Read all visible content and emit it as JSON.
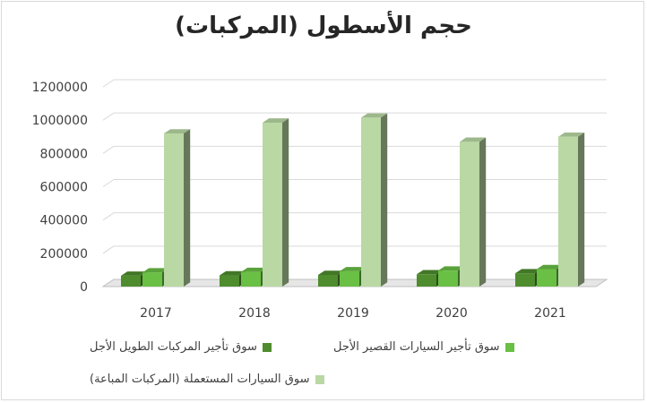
{
  "chart_data": {
    "type": "bar",
    "title": "حجم الأسطول (المركبات)",
    "categories": [
      "2017",
      "2018",
      "2019",
      "2020",
      "2021"
    ],
    "series": [
      {
        "name": "سوق تأجير المركبات الطويل الأجل",
        "values": [
          65000,
          67000,
          70000,
          74000,
          80000
        ],
        "color": "#4e8c2e"
      },
      {
        "name": "سوق تأجير السيارات القصير الأجل",
        "values": [
          85000,
          88000,
          92000,
          96000,
          105000
        ],
        "color": "#6abf45"
      },
      {
        "name": "سوق السيارات المستعملة (المركبات المباعة)",
        "values": [
          920000,
          985000,
          1015000,
          870000,
          900000
        ],
        "color": "#b9d8a4"
      }
    ],
    "ylim": [
      0,
      1200000
    ],
    "yticks": [
      0,
      200000,
      400000,
      600000,
      800000,
      1000000,
      1200000
    ],
    "grid": true,
    "legend_position": "bottom"
  }
}
